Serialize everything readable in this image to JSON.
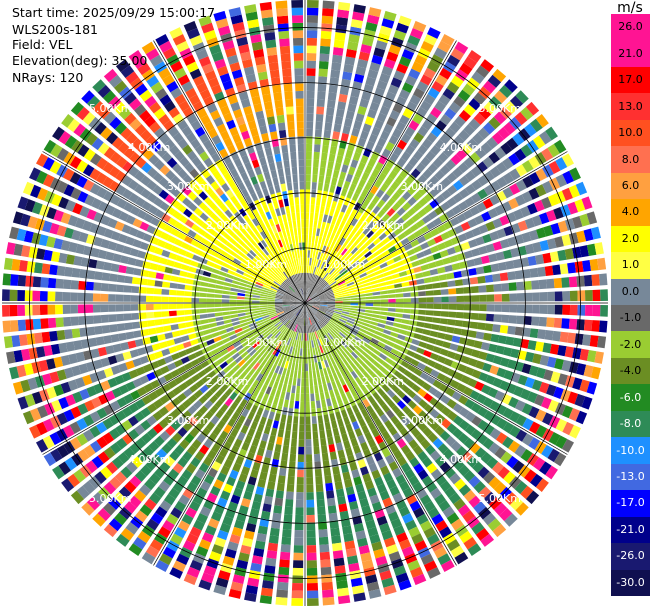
{
  "header": {
    "start_time": "Start time: 2025/09/29 15:00:17",
    "instrument": "WLS200s-181",
    "field": "Field: VEL",
    "elevation": "Elevation(deg): 35.00",
    "nrays": "NRays: 120"
  },
  "chart_data": {
    "type": "polar-ppi",
    "field": "VEL",
    "units": "m/s",
    "n_rays": 120,
    "elevation_deg": 35.0,
    "max_range_km": 5.5,
    "range_rings_km": [
      1.0,
      2.0,
      3.0,
      4.0,
      5.0
    ],
    "range_ring_labels": [
      "1.00Km",
      "2.00Km",
      "3.00Km",
      "4.00Km",
      "5.00Km"
    ],
    "radial_lines_deg": [
      0,
      30,
      60,
      90,
      120,
      150,
      180,
      210,
      240,
      270,
      300,
      330
    ],
    "colorbar": {
      "unit": "m/s",
      "levels": [
        26.0,
        21.0,
        17.0,
        13.0,
        10.0,
        8.0,
        6.0,
        4.0,
        2.0,
        1.0,
        0.0,
        -1.0,
        -2.0,
        -4.0,
        -6.0,
        -8.0,
        -10.0,
        -13.0,
        -17.0,
        -21.0,
        -26.0,
        -30.0
      ],
      "labels": [
        "26.0",
        "21.0",
        "17.0",
        "13.0",
        "10.0",
        "8.0",
        "6.0",
        "4.0",
        "2.0",
        "1.0",
        "0.0",
        "-1.0",
        "-2.0",
        "-4.0",
        "-6.0",
        "-8.0",
        "-10.0",
        "-13.0",
        "-17.0",
        "-21.0",
        "-26.0",
        "-30.0"
      ],
      "colors": [
        "#ff1493",
        "#ff1493",
        "#ff0000",
        "#ff3030",
        "#ff5020",
        "#ff7050",
        "#ffa040",
        "#ffa500",
        "#ffff00",
        "#ffff44",
        "#778899",
        "#696969",
        "#9acd32",
        "#6b8e23",
        "#228b22",
        "#2e8b57",
        "#1e90ff",
        "#4169e1",
        "#0000ff",
        "#00008b",
        "#191970",
        "#101050"
      ],
      "label_colors": [
        "#000",
        "#000",
        "#000",
        "#000",
        "#000",
        "#000",
        "#000",
        "#000",
        "#000",
        "#000",
        "#000",
        "#000",
        "#000",
        "#000",
        "#fff",
        "#fff",
        "#fff",
        "#fff",
        "#fff",
        "#fff",
        "#fff",
        "#fff"
      ]
    },
    "regions": [
      {
        "range_km": [
          0.0,
          0.6
        ],
        "azimuth_deg": [
          0,
          360
        ],
        "vel_ms": -0.5
      },
      {
        "range_km": [
          0.6,
          2.0
        ],
        "azimuth_deg": [
          290,
          360
        ],
        "vel_ms": 3.0
      },
      {
        "range_km": [
          0.6,
          2.0
        ],
        "azimuth_deg": [
          0,
          80
        ],
        "vel_ms": 3.0
      },
      {
        "range_km": [
          0.6,
          2.0
        ],
        "azimuth_deg": [
          80,
          290
        ],
        "vel_ms": -1.5
      },
      {
        "range_km": [
          2.0,
          3.0
        ],
        "azimuth_deg": [
          250,
          330
        ],
        "vel_ms": 3.0
      },
      {
        "range_km": [
          2.0,
          3.0
        ],
        "azimuth_deg": [
          330,
          360
        ],
        "vel_ms": 0.5
      },
      {
        "range_km": [
          2.0,
          3.0
        ],
        "azimuth_deg": [
          0,
          80
        ],
        "vel_ms": -1.5
      },
      {
        "range_km": [
          2.0,
          3.5
        ],
        "azimuth_deg": [
          80,
          250
        ],
        "vel_ms": -3.0
      },
      {
        "range_km": [
          3.0,
          4.5
        ],
        "azimuth_deg": [
          250,
          330
        ],
        "vel_ms": 0.5
      },
      {
        "range_km": [
          3.0,
          4.0
        ],
        "azimuth_deg": [
          330,
          360
        ],
        "vel_ms": 4.0
      },
      {
        "range_km": [
          3.0,
          4.0
        ],
        "azimuth_deg": [
          0,
          80
        ],
        "vel_ms": 0.5
      },
      {
        "range_km": [
          3.5,
          5.0
        ],
        "azimuth_deg": [
          100,
          250
        ],
        "vel_ms": -7.0
      },
      {
        "range_km": [
          4.0,
          5.5
        ],
        "azimuth_deg": [
          300,
          360
        ],
        "vel_ms": 10.0
      },
      {
        "range_km": [
          4.5,
          5.5
        ],
        "azimuth_deg": [
          0,
          360
        ],
        "vel_ms": 0.0,
        "noisy": true
      }
    ]
  }
}
